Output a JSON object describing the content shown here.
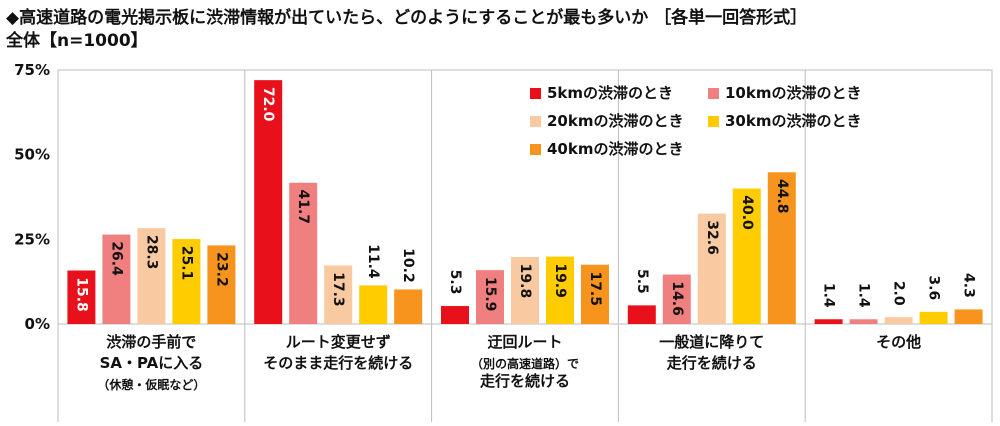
{
  "title": "◆高速道路の電光掲示板に渋滞情報が出ていたら、どのようにすることが最も多いか ［各単一回答形式］",
  "subtitle": "全体【n=1000】",
  "chart_data": {
    "type": "bar",
    "ylim": [
      0,
      75
    ],
    "yticks": [
      "0%",
      "25%",
      "50%",
      "75%"
    ],
    "ytick_values": [
      0,
      25,
      50,
      75
    ],
    "grid": false,
    "legend_position": "top-right",
    "categories": [
      [
        "渋滞の手前で",
        "SA・PAに入る",
        "（休憩・仮眠など）"
      ],
      [
        "ルート変更せず",
        "そのまま走行を続ける"
      ],
      [
        "迂回ルート",
        "（別の高速道路）で",
        "走行を続ける"
      ],
      [
        "一般道に降りて",
        "走行を続ける"
      ],
      [
        "その他"
      ]
    ],
    "series": [
      {
        "name": "5kmの渋滞のとき",
        "color": "#e8101a",
        "values": [
          15.8,
          72.0,
          5.3,
          5.5,
          1.4
        ]
      },
      {
        "name": "10kmの渋滞のとき",
        "color": "#f08080",
        "values": [
          26.4,
          41.7,
          15.9,
          14.6,
          1.4
        ]
      },
      {
        "name": "20kmの渋滞のとき",
        "color": "#f9c9a2",
        "values": [
          28.3,
          17.3,
          19.8,
          32.6,
          2.0
        ]
      },
      {
        "name": "30kmの渋滞のとき",
        "color": "#ffcc00",
        "values": [
          25.1,
          11.4,
          19.9,
          40.0,
          3.6
        ]
      },
      {
        "name": "40kmの渋滞のとき",
        "color": "#f7941d",
        "values": [
          23.2,
          10.2,
          17.5,
          44.8,
          4.3
        ]
      }
    ]
  }
}
